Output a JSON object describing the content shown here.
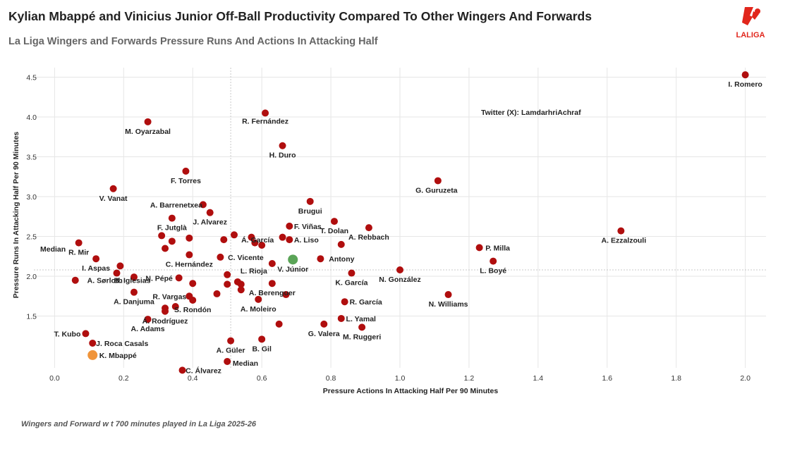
{
  "header": {
    "title": "Kylian Mbappé and Vinicius Junior Off-Ball Productivity Compared To Other Wingers And Forwards",
    "subtitle": "La Liga Wingers and Forwards Pressure Runs And Actions In Attacking Half"
  },
  "footer": {
    "note": "Wingers and Forward w          t 700 minutes played in La Liga 2025-26"
  },
  "logo": {
    "text": "LALIGA",
    "color": "#e1261c"
  },
  "colors": {
    "default": "#b00e0e",
    "vinicius": "#5aa457",
    "mbappe": "#f0943a"
  },
  "chart_data": {
    "type": "scatter",
    "xlabel": "Pressure Actions In Attacking Half Per 90 Minutes",
    "ylabel": "Pressure Runs In Attacking Half  Per 90 Minutes",
    "xlim": [
      -0.06,
      2.06
    ],
    "ylim": [
      0.85,
      4.62
    ],
    "xticks": [
      "0.0",
      "0.2",
      "0.4",
      "0.6",
      "0.8",
      "1.0",
      "1.2",
      "1.4",
      "1.6",
      "1.8",
      "2.0"
    ],
    "yticks": [
      "1.5",
      "2.0",
      "2.5",
      "3.0",
      "3.5",
      "4.0",
      "4.5"
    ],
    "grid": true,
    "median": {
      "x": 0.51,
      "y": 2.08,
      "x_label": "Median",
      "y_label": "Median"
    },
    "annotation": "Twitter (X): LamdarhriAchraf",
    "labeled_points": [
      {
        "name": "I. Romero",
        "x": 2.0,
        "y": 4.53
      },
      {
        "name": "R. Fernández",
        "x": 0.61,
        "y": 4.05
      },
      {
        "name": "M. Oyarzabal",
        "x": 0.27,
        "y": 3.94
      },
      {
        "name": "H. Duro",
        "x": 0.66,
        "y": 3.64
      },
      {
        "name": "F. Torres",
        "x": 0.38,
        "y": 3.32
      },
      {
        "name": "G. Guruzeta",
        "x": 1.11,
        "y": 3.2
      },
      {
        "name": "V. Vanat",
        "x": 0.17,
        "y": 3.1
      },
      {
        "name": "A. Barrenetxea",
        "x": 0.43,
        "y": 2.9
      },
      {
        "name": "Brugui",
        "x": 0.74,
        "y": 2.94
      },
      {
        "name": "J. Alvarez",
        "x": 0.45,
        "y": 2.8
      },
      {
        "name": "F. Jutglà",
        "x": 0.34,
        "y": 2.73
      },
      {
        "name": "Á. García",
        "x": 0.6,
        "y": 2.39
      },
      {
        "name": "F. Viñas",
        "x": 0.68,
        "y": 2.63
      },
      {
        "name": "T. Dolan",
        "x": 0.81,
        "y": 2.69
      },
      {
        "name": "A. Liso",
        "x": 0.68,
        "y": 2.46
      },
      {
        "name": "A. Rebbach",
        "x": 0.91,
        "y": 2.61
      },
      {
        "name": "A. Ezzalzouli",
        "x": 1.64,
        "y": 2.57
      },
      {
        "name": "P. Milla",
        "x": 1.23,
        "y": 2.36
      },
      {
        "name": "R. Mir",
        "x": 0.07,
        "y": 2.42
      },
      {
        "name": "B. Iglesias",
        "x": 0.18,
        "y": 2.04
      },
      {
        "name": "C. Hernández",
        "x": 0.39,
        "y": 2.27
      },
      {
        "name": "C. Vicente",
        "x": 0.48,
        "y": 2.24
      },
      {
        "name": "Antony",
        "x": 0.77,
        "y": 2.22
      },
      {
        "name": "L. Boyé",
        "x": 1.27,
        "y": 2.19
      },
      {
        "name": "I. Aspas",
        "x": 0.12,
        "y": 2.22
      },
      {
        "name": "L. Rioja",
        "x": 0.63,
        "y": 2.16
      },
      {
        "name": "V. Júnior",
        "x": 0.69,
        "y": 2.21,
        "group": "vinicius"
      },
      {
        "name": "N. González",
        "x": 1.0,
        "y": 2.08
      },
      {
        "name": "K. García",
        "x": 0.86,
        "y": 2.04
      },
      {
        "name": "N. Pépé",
        "x": 0.36,
        "y": 1.98
      },
      {
        "name": "A. Sørloth",
        "x": 0.06,
        "y": 1.95
      },
      {
        "name": "A. Berenguer",
        "x": 0.63,
        "y": 1.91
      },
      {
        "name": "R. Vargas",
        "x": 0.39,
        "y": 1.75
      },
      {
        "name": "A. Danjuma",
        "x": 0.23,
        "y": 1.8
      },
      {
        "name": "N. Williams",
        "x": 1.14,
        "y": 1.77
      },
      {
        "name": "R. García",
        "x": 0.84,
        "y": 1.68
      },
      {
        "name": "S. Rondón",
        "x": 0.4,
        "y": 1.7
      },
      {
        "name": "A. Moleiro",
        "x": 0.59,
        "y": 1.71
      },
      {
        "name": "Á. Rodríguez",
        "x": 0.32,
        "y": 1.56
      },
      {
        "name": "L. Yamal",
        "x": 0.83,
        "y": 1.47
      },
      {
        "name": "A. Adams",
        "x": 0.27,
        "y": 1.46
      },
      {
        "name": "G. Valera",
        "x": 0.78,
        "y": 1.4
      },
      {
        "name": "M. Ruggeri",
        "x": 0.89,
        "y": 1.36
      },
      {
        "name": "T. Kubo",
        "x": 0.09,
        "y": 1.28
      },
      {
        "name": "J. Roca Casals",
        "x": 0.11,
        "y": 1.16
      },
      {
        "name": "A. Güler",
        "x": 0.51,
        "y": 1.19
      },
      {
        "name": "B. Gil",
        "x": 0.6,
        "y": 1.21
      },
      {
        "name": "K. Mbappé",
        "x": 0.11,
        "y": 1.01,
        "group": "mbappe"
      },
      {
        "name": "C. Álvarez",
        "x": 0.37,
        "y": 0.82
      }
    ],
    "extra_points": [
      {
        "x": 0.31,
        "y": 2.51
      },
      {
        "x": 0.32,
        "y": 2.35
      },
      {
        "x": 0.34,
        "y": 2.44
      },
      {
        "x": 0.39,
        "y": 2.48
      },
      {
        "x": 0.49,
        "y": 2.46
      },
      {
        "x": 0.52,
        "y": 2.52
      },
      {
        "x": 0.57,
        "y": 2.49
      },
      {
        "x": 0.58,
        "y": 2.42
      },
      {
        "x": 0.66,
        "y": 2.49
      },
      {
        "x": 0.83,
        "y": 2.4
      },
      {
        "x": 0.19,
        "y": 2.13
      },
      {
        "x": 0.23,
        "y": 1.99
      },
      {
        "x": 0.4,
        "y": 1.91
      },
      {
        "x": 0.5,
        "y": 2.02
      },
      {
        "x": 0.5,
        "y": 1.9
      },
      {
        "x": 0.54,
        "y": 1.9
      },
      {
        "x": 0.54,
        "y": 1.83
      },
      {
        "x": 0.47,
        "y": 1.78
      },
      {
        "x": 0.67,
        "y": 1.77
      },
      {
        "x": 0.35,
        "y": 1.62
      },
      {
        "x": 0.32,
        "y": 1.6
      },
      {
        "x": 0.53,
        "y": 1.93
      },
      {
        "x": 0.65,
        "y": 1.4
      },
      {
        "x": 0.5,
        "y": 0.93
      }
    ]
  }
}
